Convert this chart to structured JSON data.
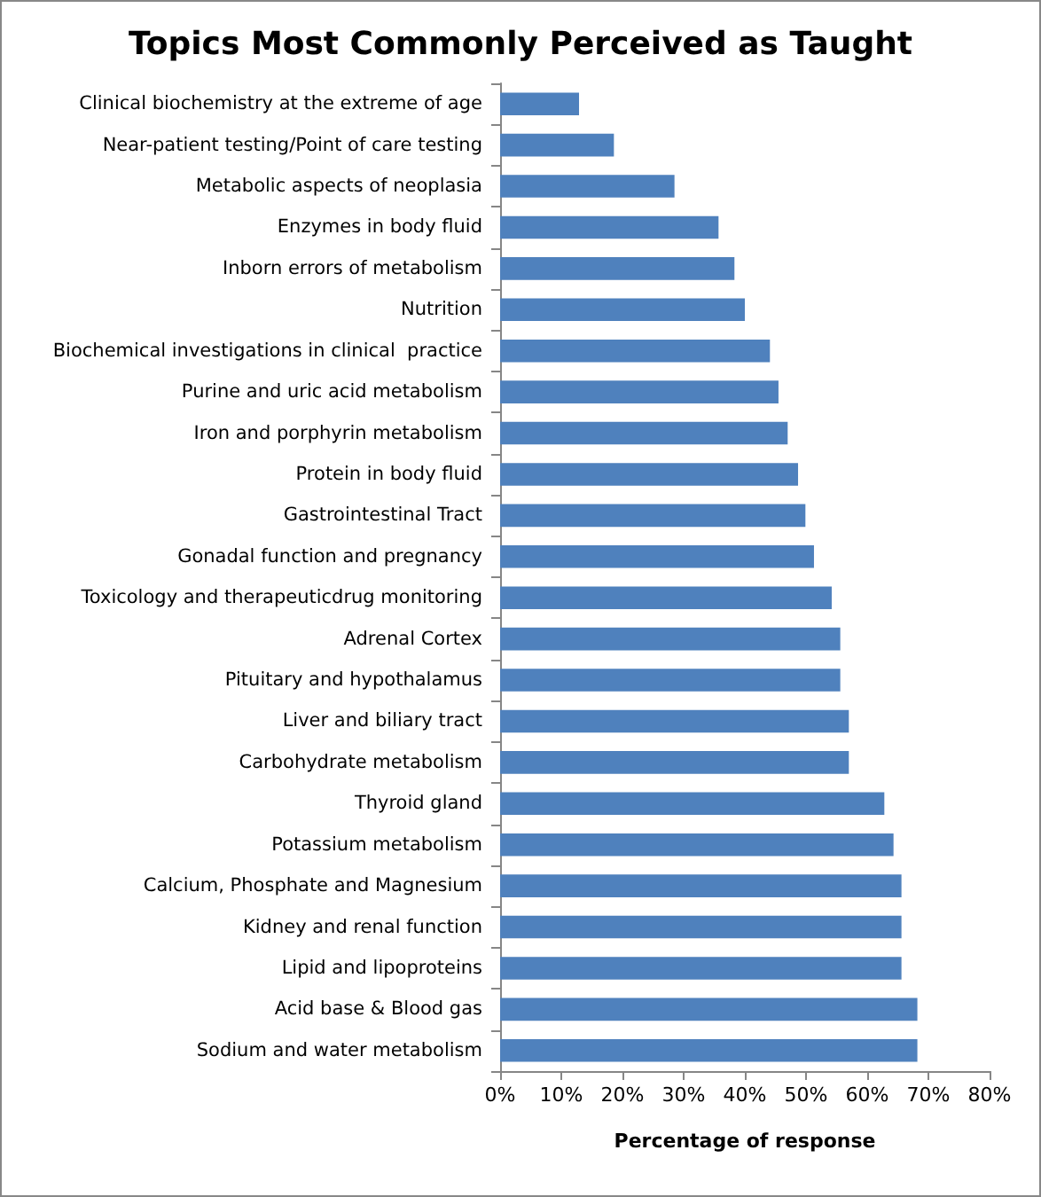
{
  "chart_data": {
    "type": "bar",
    "orientation": "horizontal",
    "title": "Topics Most Commonly Perceived as Taught",
    "xlabel": "Percentage of response",
    "categories": [
      "Clinical biochemistry at the extreme of age",
      "Near-patient testing/Point of care testing",
      "Metabolic aspects of neoplasia",
      "Enzymes in body fluid",
      "Inborn errors of metabolism",
      "Nutrition",
      "Biochemical investigations in clinical  practice",
      "Purine and uric acid metabolism",
      "Iron and porphyrin metabolism",
      "Protein in body fluid",
      "Gastrointestinal Tract",
      "Gonadal function and pregnancy",
      "Toxicology and therapeuticdrug monitoring",
      "Adrenal Cortex",
      "Pituitary and hypothalamus",
      "Liver and biliary tract",
      "Carbohydrate metabolism",
      "Thyroid gland",
      "Potassium metabolism",
      "Calcium, Phosphate and Magnesium",
      "Kidney and renal function",
      "Lipid and lipoproteins",
      "Acid base & Blood gas",
      "Sodium and water metabolism"
    ],
    "values": [
      12.9,
      18.6,
      28.5,
      35.7,
      38.3,
      40.0,
      44.1,
      45.5,
      47.0,
      48.7,
      49.9,
      51.3,
      54.2,
      55.6,
      55.6,
      57.0,
      57.0,
      62.8,
      64.3,
      65.6,
      65.6,
      65.6,
      68.2,
      68.2
    ],
    "color": "#4f81bd",
    "xlim": [
      0,
      80
    ],
    "xticks": [
      {
        "value": 0,
        "label": "0%"
      },
      {
        "value": 10,
        "label": "10%"
      },
      {
        "value": 20,
        "label": "20%"
      },
      {
        "value": 30,
        "label": "30%"
      },
      {
        "value": 40,
        "label": "40%"
      },
      {
        "value": 50,
        "label": "50%"
      },
      {
        "value": 60,
        "label": "60%"
      },
      {
        "value": 70,
        "label": "70%"
      },
      {
        "value": 80,
        "label": "80%"
      }
    ],
    "grid": false
  }
}
